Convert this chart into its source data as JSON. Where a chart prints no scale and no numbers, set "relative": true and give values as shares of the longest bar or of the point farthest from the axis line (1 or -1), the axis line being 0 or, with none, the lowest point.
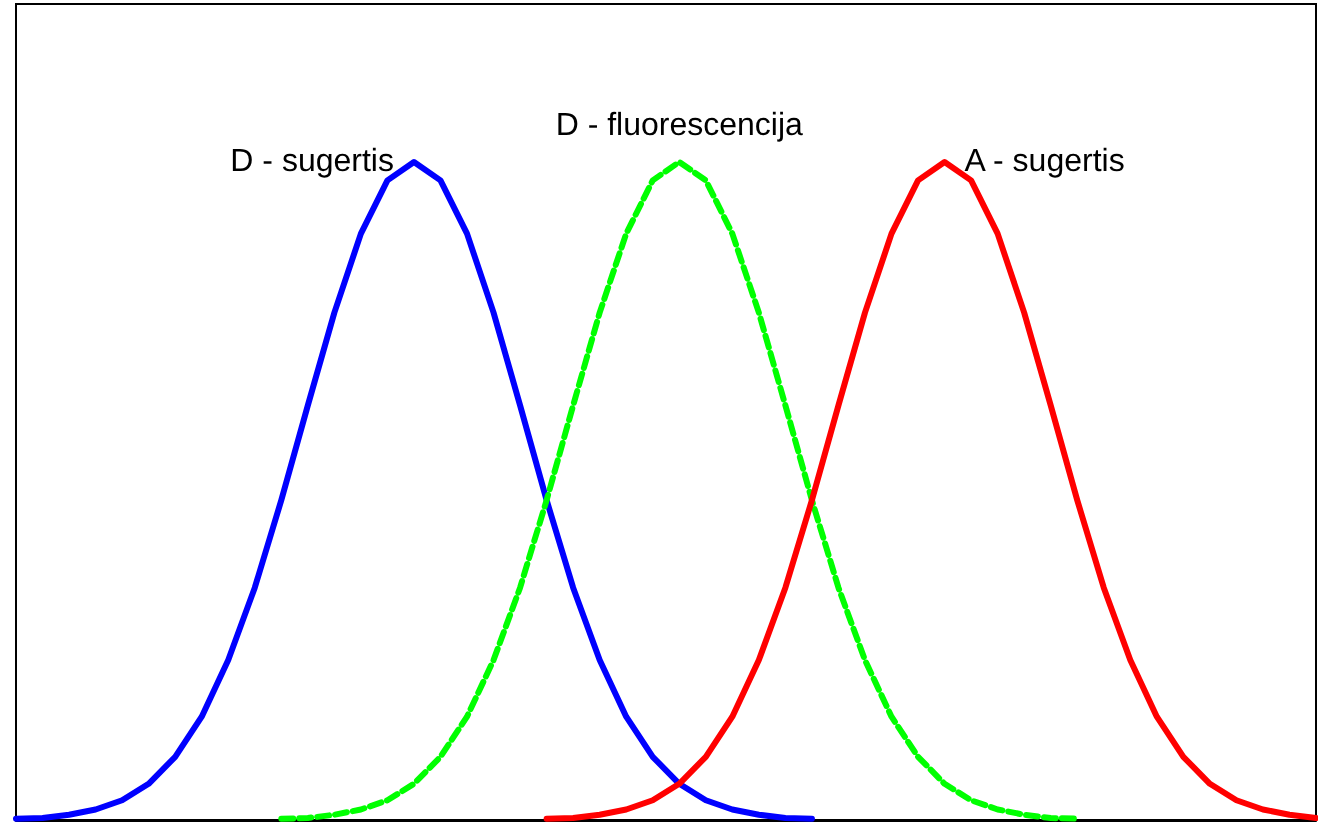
{
  "chart_data": {
    "type": "line",
    "relative": true,
    "tick_labels": false,
    "marker": "none",
    "grid": false,
    "legend": false,
    "categories": [
      null,
      null,
      null,
      null,
      null,
      null,
      null,
      null,
      null,
      null,
      null,
      null,
      null,
      null,
      null,
      null,
      null,
      null,
      null,
      null,
      null,
      null,
      null,
      null,
      null,
      null,
      null,
      null,
      null,
      null,
      null,
      null,
      null,
      null,
      null,
      null,
      null,
      null,
      null,
      null,
      null,
      null,
      null,
      null,
      null,
      null,
      null,
      null,
      null,
      null
    ],
    "series": [
      {
        "name": "D - sugertis",
        "color": "#0000ff",
        "line_style": "solid",
        "values": [
          0.002,
          0.003,
          0.008,
          0.016,
          0.03,
          0.055,
          0.096,
          0.157,
          0.243,
          0.353,
          0.486,
          0.63,
          0.771,
          0.891,
          0.972,
          1,
          0.972,
          0.891,
          0.771,
          0.63,
          0.486,
          0.353,
          0.243,
          0.157,
          0.096,
          0.055,
          0.03,
          0.016,
          0.008,
          0.003,
          0.002,
          null,
          null,
          null,
          null,
          null,
          null,
          null,
          null,
          null,
          null,
          null,
          null,
          null,
          null,
          null,
          null,
          null,
          null,
          null
        ]
      },
      {
        "name": "D - fluorescencija",
        "color": "#00ff00",
        "line_style": "dashed",
        "values": [
          null,
          null,
          null,
          null,
          null,
          null,
          null,
          null,
          null,
          null,
          0.002,
          0.003,
          0.008,
          0.016,
          0.03,
          0.055,
          0.096,
          0.157,
          0.243,
          0.353,
          0.486,
          0.63,
          0.771,
          0.891,
          0.972,
          1,
          0.972,
          0.891,
          0.771,
          0.63,
          0.486,
          0.353,
          0.243,
          0.157,
          0.096,
          0.055,
          0.03,
          0.016,
          0.008,
          0.003,
          0.002,
          null,
          null,
          null,
          null,
          null,
          null,
          null,
          null,
          null
        ]
      },
      {
        "name": "A - sugertis",
        "color": "#ff0000",
        "line_style": "solid",
        "values": [
          null,
          null,
          null,
          null,
          null,
          null,
          null,
          null,
          null,
          null,
          null,
          null,
          null,
          null,
          null,
          null,
          null,
          null,
          null,
          null,
          0.002,
          0.003,
          0.008,
          0.016,
          0.03,
          0.055,
          0.096,
          0.157,
          0.243,
          0.353,
          0.486,
          0.63,
          0.771,
          0.891,
          0.972,
          1,
          0.972,
          0.891,
          0.771,
          0.63,
          0.486,
          0.353,
          0.243,
          0.157,
          0.096,
          0.055,
          0.03,
          0.016,
          0.008,
          0.003
        ]
      }
    ]
  }
}
